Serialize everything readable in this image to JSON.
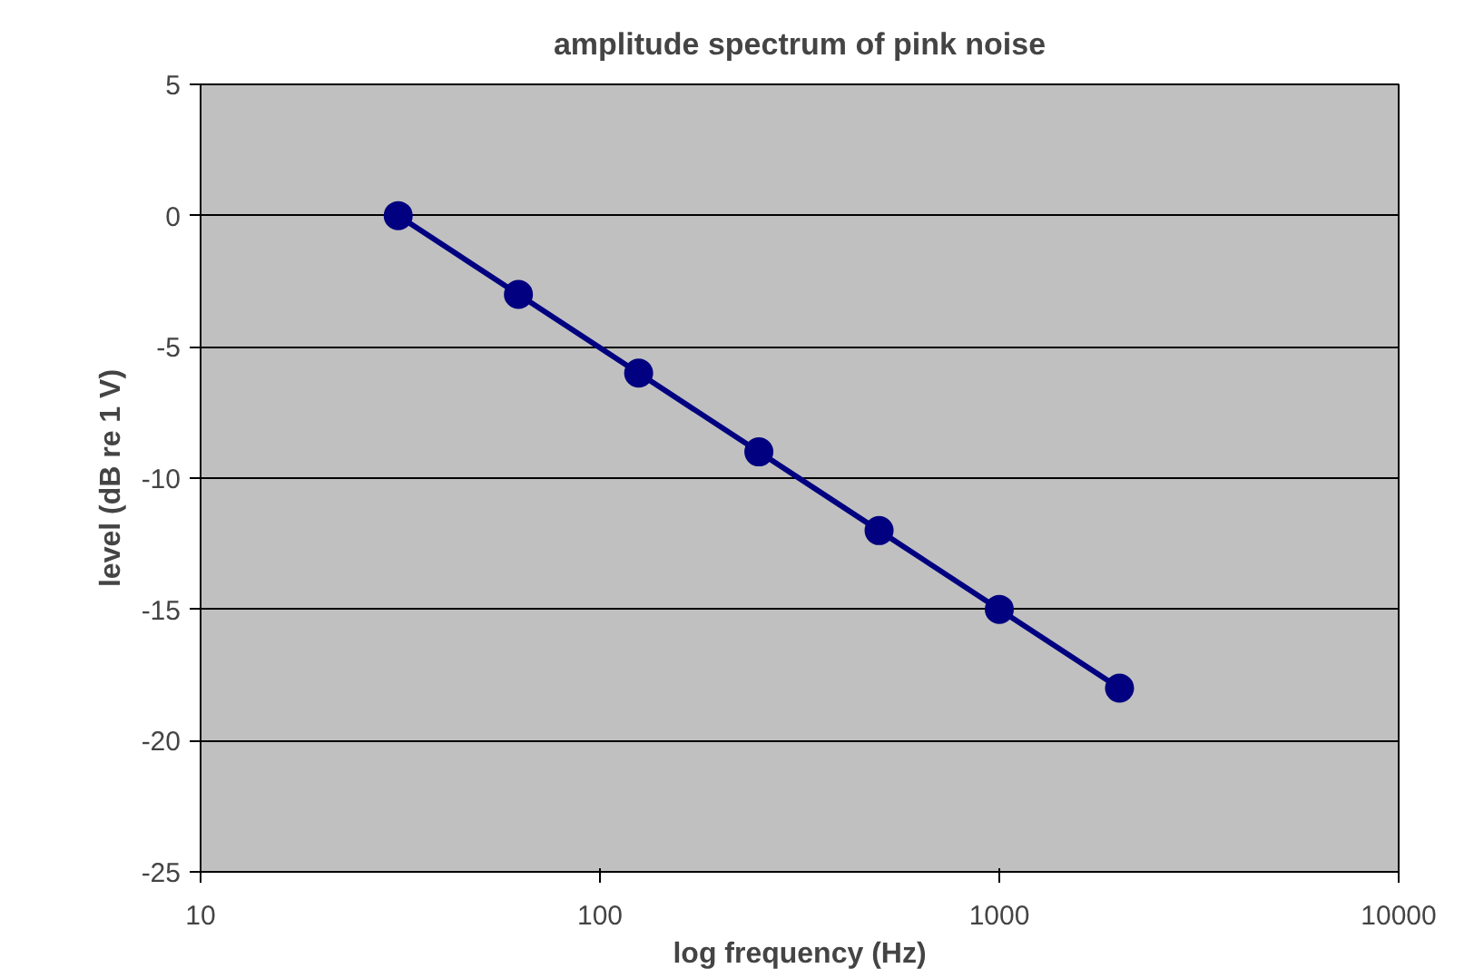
{
  "chart_data": {
    "type": "line",
    "title": "amplitude spectrum of pink noise",
    "xlabel": "log frequency (Hz)",
    "ylabel": "level (dB re 1 V)",
    "x": [
      31.25,
      62.5,
      125,
      250,
      500,
      1000,
      2000
    ],
    "series": [
      {
        "color": "#000080",
        "values": [
          0,
          -3,
          -6,
          -9,
          -12,
          -15,
          -18
        ]
      }
    ],
    "log": "x",
    "xlim": [
      10,
      10000
    ],
    "xticks": [
      10,
      100,
      1000,
      10000
    ],
    "ylim": [
      -25,
      5
    ],
    "yticks": [
      -25,
      -20,
      -15,
      -10,
      -5,
      0,
      5
    ],
    "grid": "y",
    "marker": "circle",
    "line_style": "solid"
  }
}
